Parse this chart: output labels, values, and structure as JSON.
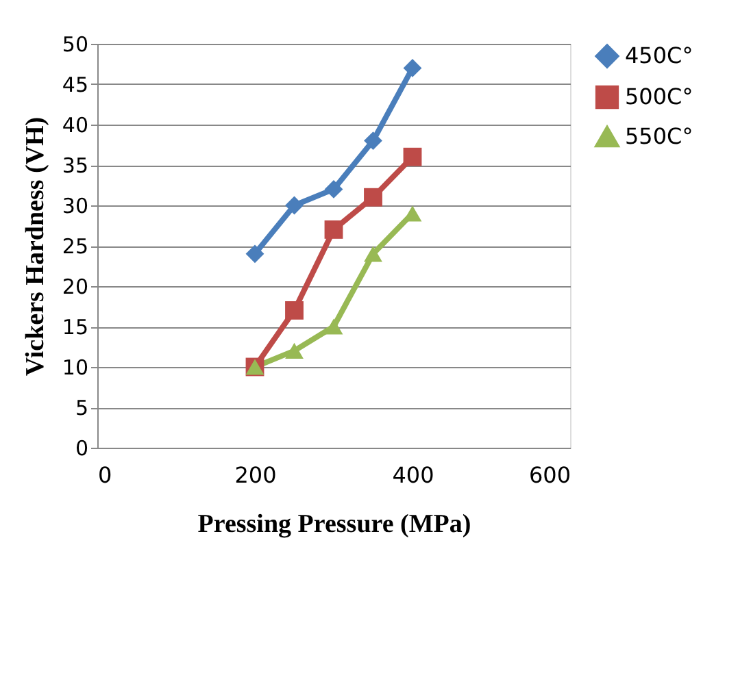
{
  "chart_data": {
    "type": "line",
    "xlabel": "Pressing Pressure (MPa)",
    "ylabel": "Vickers Hardness (VH)",
    "x": [
      200,
      250,
      300,
      350,
      400
    ],
    "series": [
      {
        "name": "450C°",
        "color": "#4a7ebb",
        "marker": "diamond",
        "values": [
          24,
          30,
          32,
          38,
          47
        ]
      },
      {
        "name": "500C°",
        "color": "#be4b48",
        "marker": "square",
        "values": [
          10,
          17,
          27,
          31,
          36
        ]
      },
      {
        "name": "550C°",
        "color": "#98b954",
        "marker": "triangle",
        "values": [
          10,
          12,
          15,
          24,
          29
        ]
      }
    ],
    "xlim": [
      0,
      600
    ],
    "xticks": [
      0,
      200,
      400,
      600
    ],
    "ylim": [
      0,
      50
    ],
    "yticks": [
      0,
      5,
      10,
      15,
      20,
      25,
      30,
      35,
      40,
      45,
      50
    ],
    "grid": "y",
    "legend": "right",
    "line_style": "solid"
  }
}
